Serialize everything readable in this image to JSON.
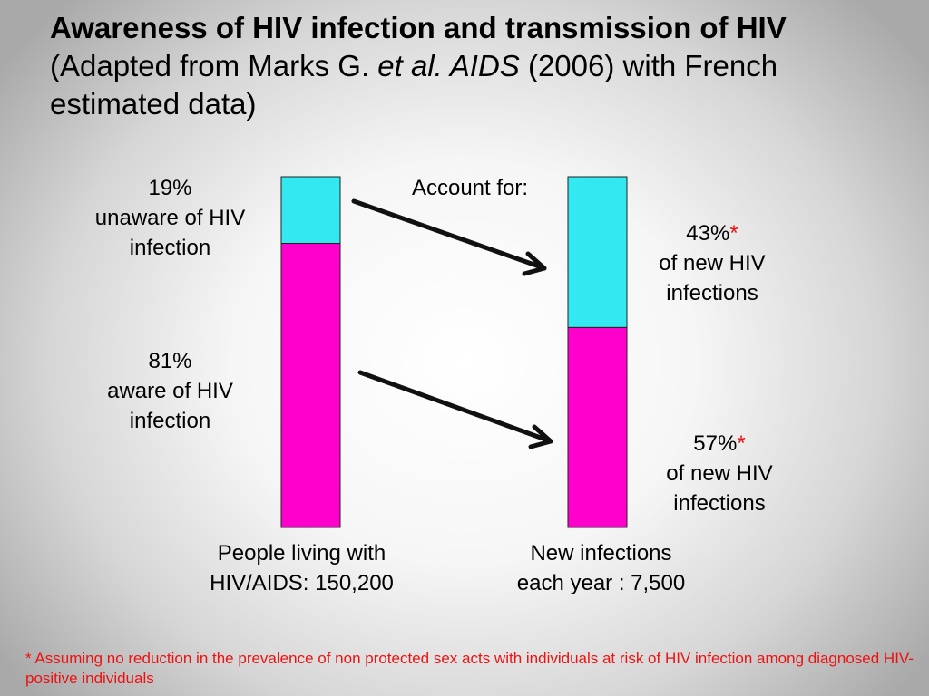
{
  "title": {
    "bold": "Awareness of HIV infection and transmission of HIV",
    "part1": " (Adapted from Marks G. ",
    "italic": "et al. AIDS",
    "part2": " (2006) with French estimated data)"
  },
  "left_labels": {
    "unaware": {
      "pct": "19%",
      "line1": "unaware of HIV",
      "line2": "infection"
    },
    "aware": {
      "pct": "81%",
      "line1": "aware of HIV",
      "line2": "infection"
    }
  },
  "center_label": "Account for:",
  "right_labels": {
    "top": {
      "pct": "43%",
      "star": "*",
      "line1": "of new HIV",
      "line2": "infections"
    },
    "bottom": {
      "pct": "57%",
      "star": "*",
      "line1": "of new HIV",
      "line2": "infections"
    }
  },
  "bottom_labels": {
    "left": {
      "line1": "People living with",
      "line2": "HIV/AIDS: 150,200"
    },
    "right": {
      "line1": "New infections",
      "line2": "each year : 7,500"
    }
  },
  "footnote": "* Assuming no reduction in the prevalence of non protected sex acts with individuals at risk of HIV infection among diagnosed HIV-positive individuals",
  "colors": {
    "unaware": "#33e8f0",
    "aware": "#ff00cc",
    "footnote": "#ee1111"
  },
  "chart_data": {
    "type": "bar",
    "stacked": true,
    "categories": [
      "People living with HIV/AIDS: 150,200",
      "New infections each year : 7,500"
    ],
    "series": [
      {
        "name": "unaware of HIV infection",
        "values": [
          19,
          43
        ],
        "color": "#33e8f0"
      },
      {
        "name": "aware of HIV infection",
        "values": [
          81,
          57
        ],
        "color": "#ff00cc"
      }
    ],
    "ylim": [
      0,
      100
    ],
    "xlabel": "",
    "ylabel": ""
  }
}
